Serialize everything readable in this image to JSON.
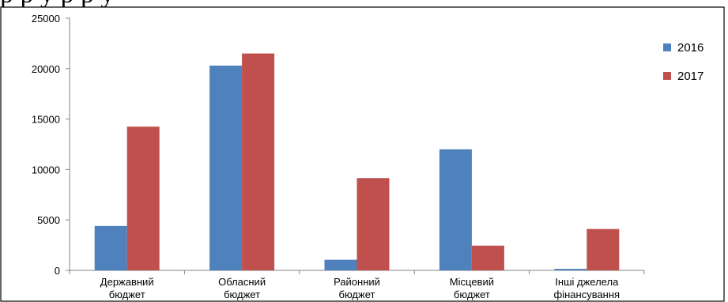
{
  "header_text": "р                 р      у     р           р     у",
  "colors": {
    "s2016": "#4f81bd",
    "s2017": "#c0504d",
    "axis": "#868686",
    "frame": "#000000"
  },
  "chart_data": {
    "type": "bar",
    "categories": [
      [
        "Державний",
        "бюджет"
      ],
      [
        "Обласний",
        "бюджет"
      ],
      [
        "Районний",
        "бюджет"
      ],
      [
        "Місцевий",
        "бюджет"
      ],
      [
        "Інші джелела",
        "фінансування"
      ]
    ],
    "series": [
      {
        "name": "2016",
        "values": [
          4400,
          20300,
          1050,
          12000,
          150
        ]
      },
      {
        "name": "2017",
        "values": [
          14250,
          21500,
          9150,
          2450,
          4100
        ]
      }
    ],
    "yticks": [
      "0",
      "5000",
      "10000",
      "15000",
      "20000",
      "25000"
    ],
    "ylim": [
      0,
      25000
    ],
    "legend_position": "right",
    "grid": false
  }
}
